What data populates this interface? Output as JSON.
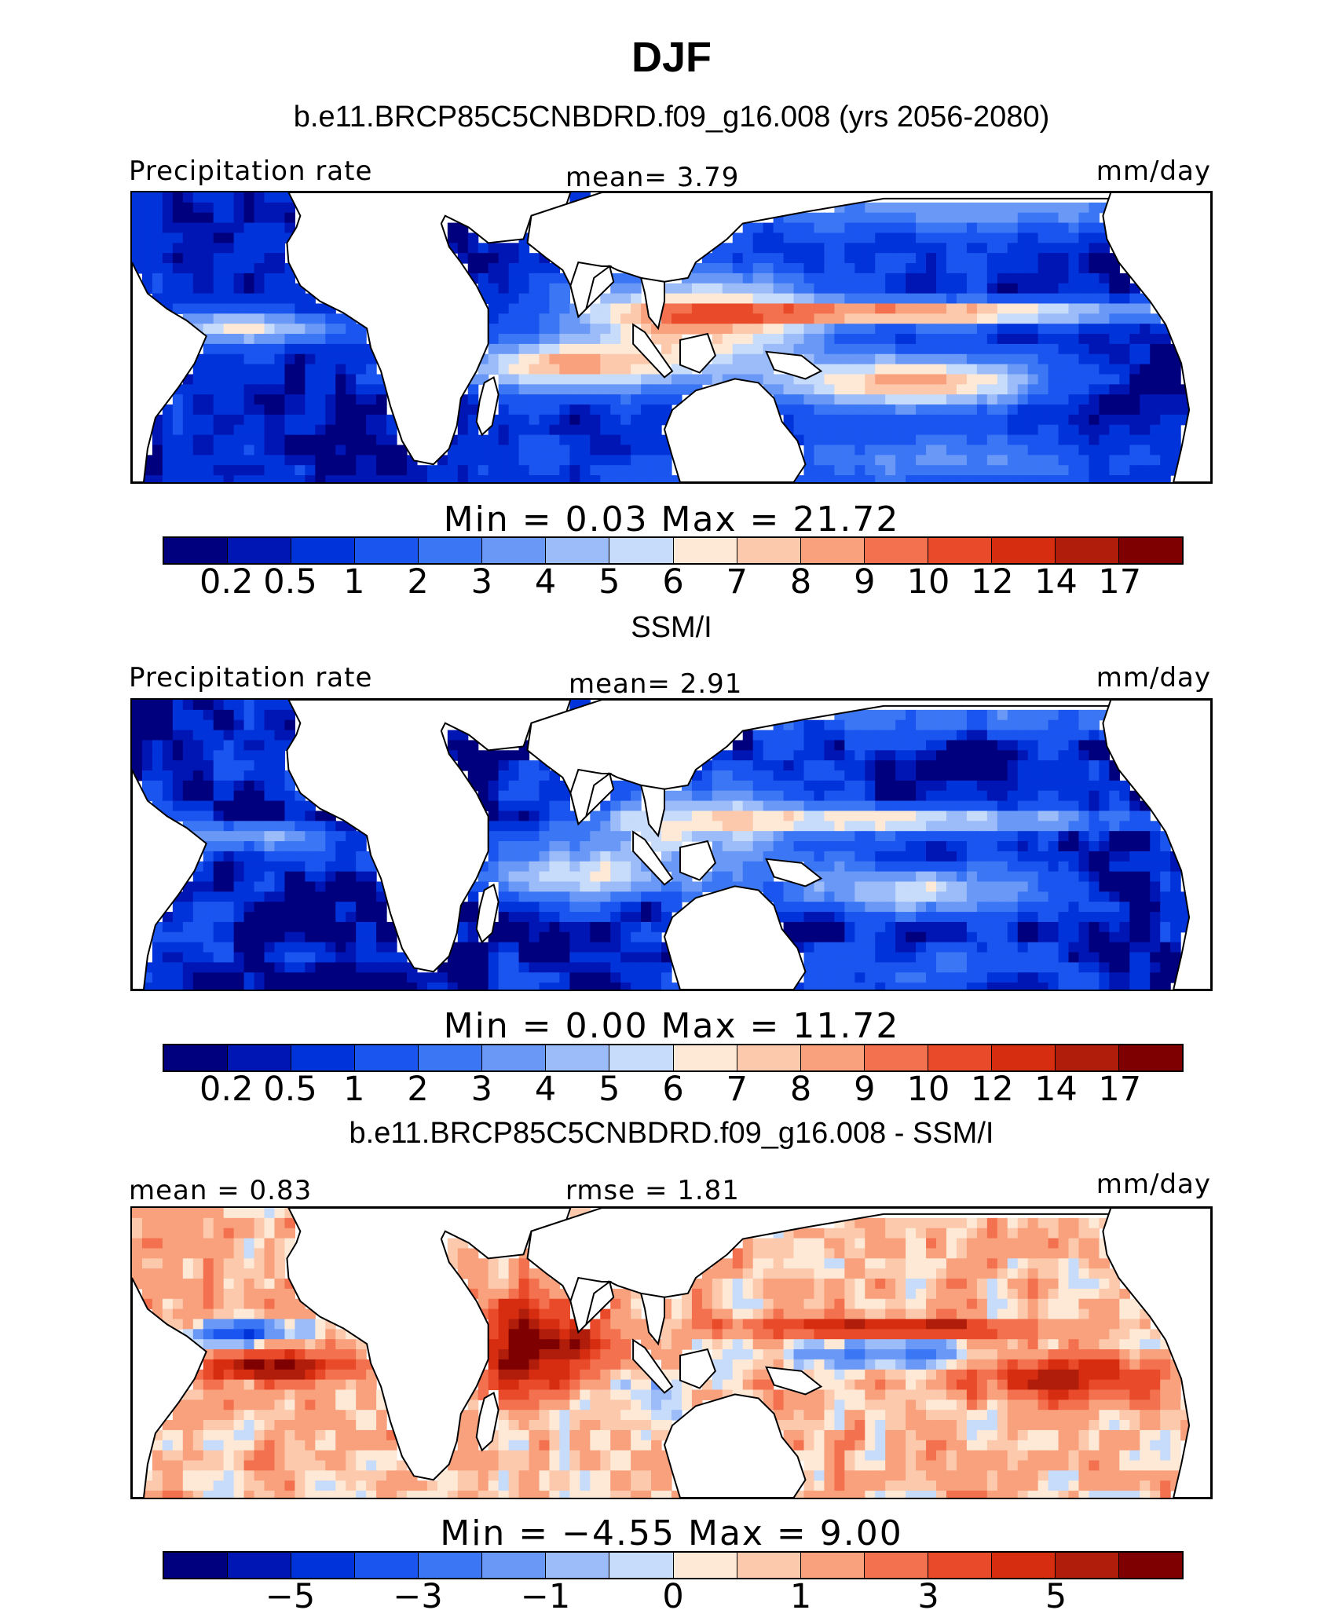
{
  "title": "DJF",
  "panels": [
    {
      "subtitle": "b.e11.BRCP85C5CNBDRD.f09_g16.008 (yrs 2056-2080)",
      "left_label": "Precipitation rate",
      "center_label": "mean=   3.79",
      "right_label": "mm/day",
      "stats": "Min  =    0.03  Max  =   21.72",
      "ticks": [
        "0.2",
        "0.5",
        "1",
        "2",
        "3",
        "4",
        "5",
        "6",
        "7",
        "8",
        "9",
        "10",
        "12",
        "14",
        "17"
      ],
      "style": "model"
    },
    {
      "subtitle": "SSM/I",
      "left_label": "Precipitation rate",
      "center_label": "mean=   2.91",
      "right_label": "mm/day",
      "stats": "Min  =    0.00  Max  =   11.72",
      "ticks": [
        "0.2",
        "0.5",
        "1",
        "2",
        "3",
        "4",
        "5",
        "6",
        "7",
        "8",
        "9",
        "10",
        "12",
        "14",
        "17"
      ],
      "style": "obs"
    },
    {
      "subtitle": "b.e11.BRCP85C5CNBDRD.f09_g16.008 - SSM/I",
      "left_label": "mean  =   0.83",
      "center_label": "rmse  =   1.81",
      "right_label": "mm/day",
      "stats": "Min  =  −4.55  Max  =     9.00",
      "ticks": [
        "−5",
        "−3",
        "−1",
        "0",
        "1",
        "3",
        "5"
      ],
      "style": "diff"
    }
  ],
  "colors": [
    "#00007f",
    "#0016b4",
    "#0033d9",
    "#1a55f0",
    "#3b77f5",
    "#6a98f7",
    "#9bbcf9",
    "#c7dbfb",
    "#fde9d6",
    "#fcc9ad",
    "#f9a07c",
    "#f3714e",
    "#e94a2a",
    "#d62c10",
    "#b01d0b",
    "#7f0000"
  ]
}
